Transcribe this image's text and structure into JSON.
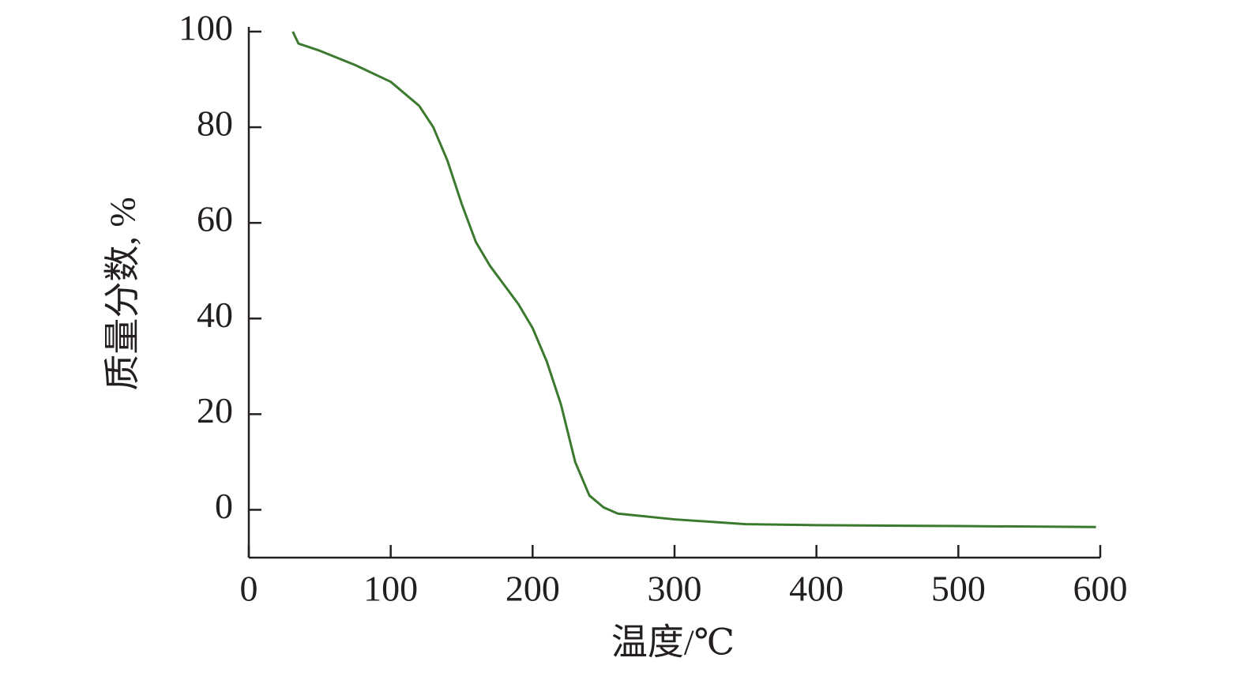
{
  "chart_data": {
    "type": "line",
    "x_label": "温度/℃",
    "y_label": "质量分数, %",
    "x": [
      31,
      35,
      50,
      75,
      100,
      120,
      130,
      140,
      150,
      160,
      170,
      180,
      190,
      200,
      210,
      220,
      230,
      240,
      250,
      260,
      300,
      350,
      400,
      500,
      597
    ],
    "series": [
      {
        "color": "#3b7a2e",
        "values": [
          100,
          97.5,
          96,
          93,
          89.5,
          84.5,
          80,
          73,
          64,
          56,
          51,
          47,
          43,
          38,
          31,
          22,
          10,
          3,
          0.5,
          -0.8,
          -2,
          -3,
          -3.2,
          -3.4,
          -3.6
        ]
      }
    ],
    "xlim": [
      0,
      600
    ],
    "xticks": [
      0,
      100,
      200,
      300,
      400,
      500,
      600
    ],
    "ylim": [
      -10,
      100
    ],
    "yticks": [
      0,
      20,
      40,
      60,
      80,
      100
    ]
  }
}
